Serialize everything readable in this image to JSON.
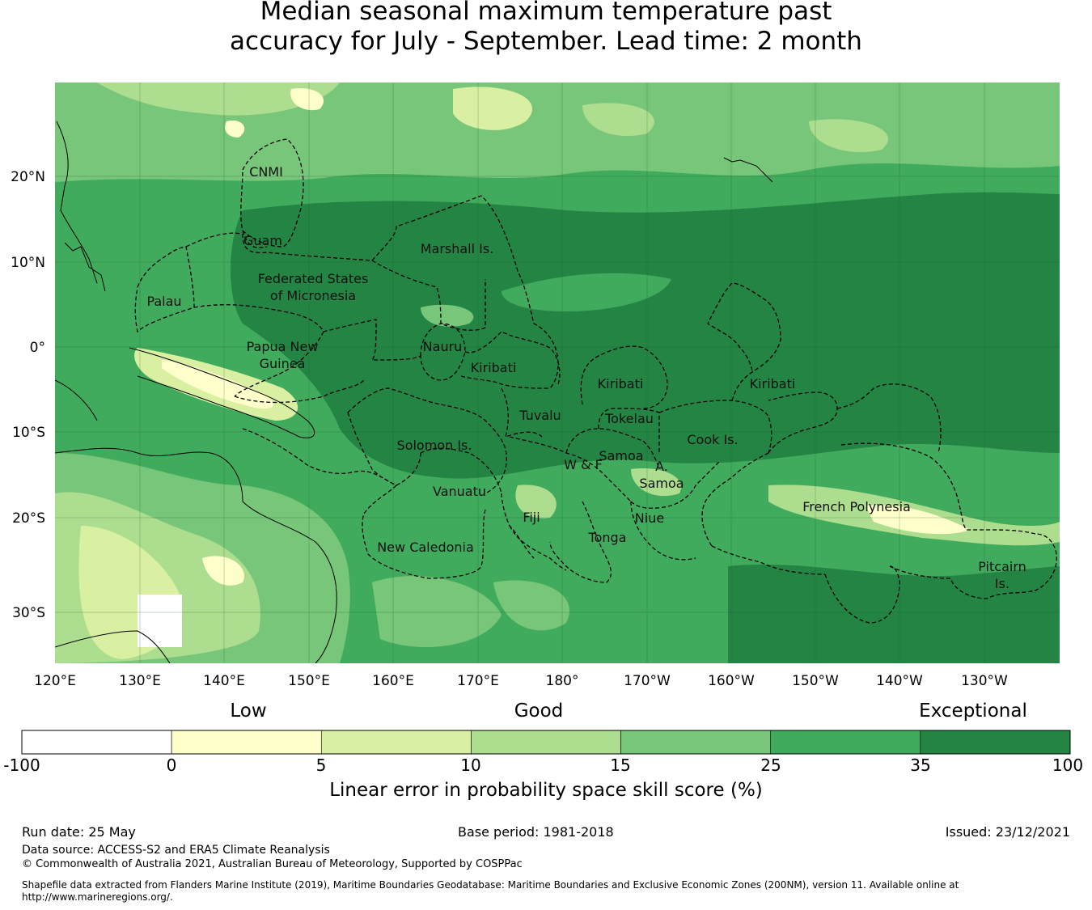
{
  "title": {
    "line1": "Median seasonal maximum temperature past",
    "line2": "accuracy for July - September. Lead time: 2 month"
  },
  "map": {
    "lon_ticks": [
      "120°E",
      "130°E",
      "140°E",
      "150°E",
      "160°E",
      "170°E",
      "180°",
      "170°W",
      "160°W",
      "150°W",
      "140°W",
      "130°W"
    ],
    "lat_ticks": [
      "20°N",
      "10°N",
      "0°",
      "10°S",
      "20°S",
      "30°S"
    ],
    "region_labels": [
      "CNMI",
      "Guam",
      "Marshall Is.",
      "Federated States",
      "of Micronesia",
      "Palau",
      "Papua New",
      "Guinea",
      "Nauru",
      "Kiribati",
      "Kiribati",
      "Kiribati",
      "Tuvalu",
      "Tokelau",
      "Cook Is.",
      "Solomon Is.",
      "Samoa",
      "W & F",
      "A.",
      "Samoa",
      "Vanuatu",
      "Fiji",
      "Niue",
      "Tonga",
      "French Polynesia",
      "New Caledonia",
      "Pitcairn",
      "Is."
    ]
  },
  "colorbar": {
    "category_labels": [
      "Low",
      "Good",
      "Exceptional"
    ],
    "bins": [
      "-100",
      "0",
      "5",
      "10",
      "15",
      "25",
      "35",
      "100"
    ],
    "colors": [
      "#ffffff",
      "#ffffcc",
      "#d9f0a3",
      "#addd8e",
      "#78c679",
      "#41ab5d",
      "#238443"
    ],
    "label": "Linear error in probability space skill score (%)"
  },
  "footer": {
    "run_date": "Run date: 25 May",
    "base_period": "Base period: 1981-2018",
    "issued": "Issued: 23/12/2021",
    "data_source": "Data source: ACCESS-S2 and ERA5 Climate Reanalysis",
    "copyright": "© Commonwealth of Australia 2021, Australian Bureau of Meteorology, Supported by COSPPac",
    "shapefile_line1": "Shapefile data extracted from Flanders Marine Institute (2019), Maritime Boundaries Geodatabase: Maritime Boundaries and Exclusive Economic Zones (200NM), version 11. Available online at",
    "shapefile_line2": "http://www.marineregions.org/."
  }
}
